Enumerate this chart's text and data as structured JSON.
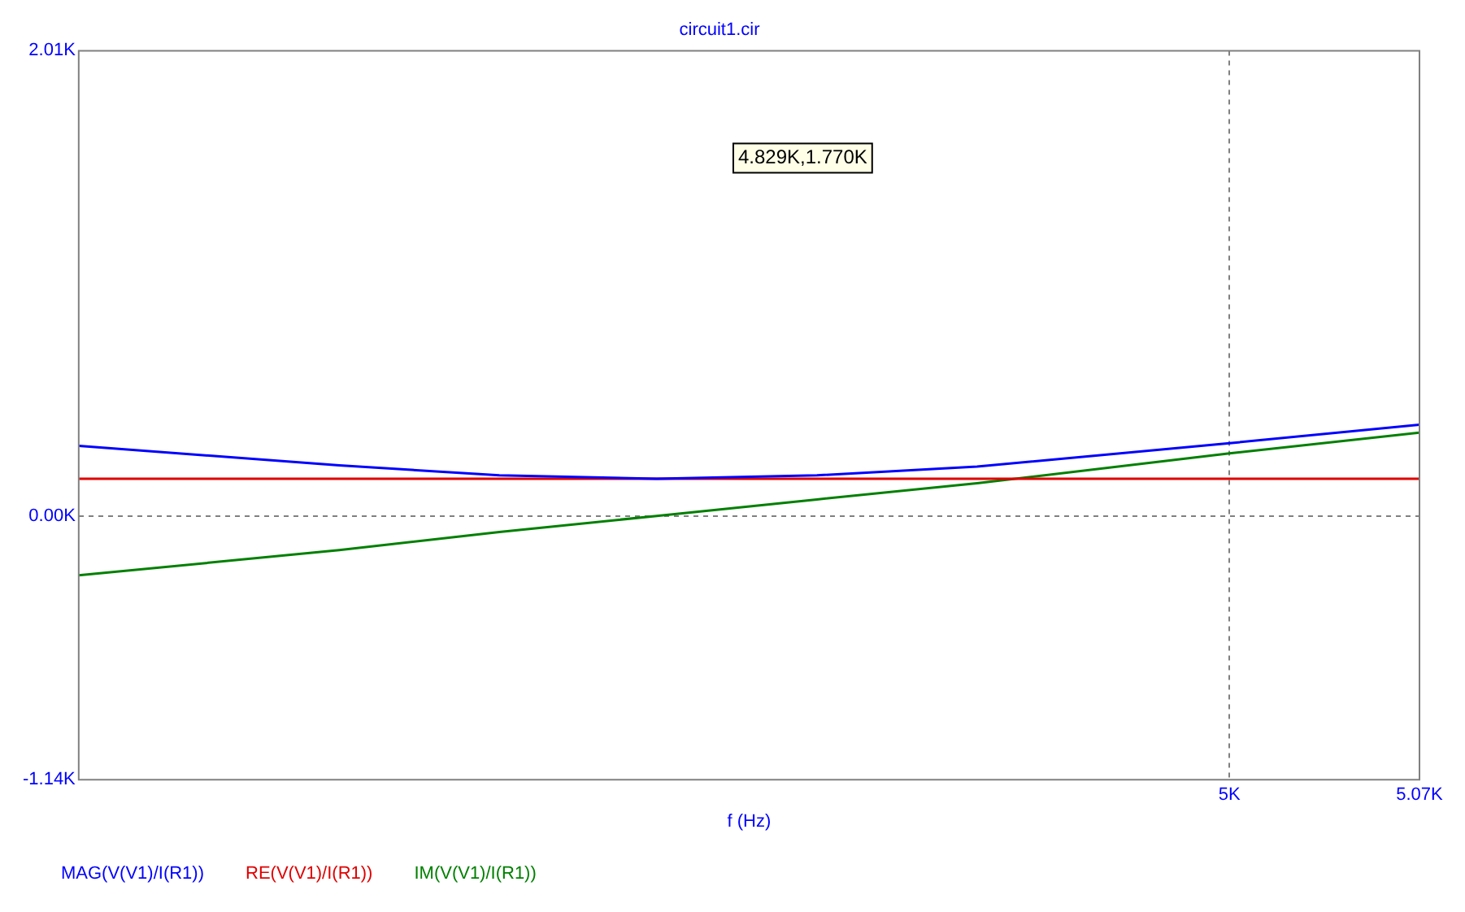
{
  "chart_data": {
    "type": "line",
    "title": "circuit1.cir",
    "x": [
      4576,
      4672,
      4731,
      4789,
      4848,
      4907,
      5000,
      5070
    ],
    "series": [
      {
        "name": "MAG(V(V1)/I(R1))",
        "color": "#0000ff",
        "values": [
          303,
          218,
          175,
          160,
          175,
          213,
          314,
          394
        ]
      },
      {
        "name": "RE(V(V1)/I(R1))",
        "color": "#e00000",
        "values": [
          160,
          160,
          160,
          160,
          160,
          160,
          160,
          160
        ]
      },
      {
        "name": "IM(V(V1)/I(R1))",
        "color": "#008000",
        "values": [
          -257,
          -148,
          -70,
          0,
          71,
          141,
          270,
          360
        ]
      }
    ],
    "xlabel": "f (Hz)",
    "xlim": [
      4576,
      5070
    ],
    "xticks": [
      {
        "value": 5000,
        "label": "5K"
      },
      {
        "value": 5070,
        "label": "5.07K"
      }
    ],
    "ylim": [
      -1140,
      2010
    ],
    "yticks": [
      {
        "value": -1140,
        "label": "-1.14K"
      },
      {
        "value": 0,
        "label": "0.00K"
      },
      {
        "value": 2010,
        "label": "2.01K"
      }
    ],
    "grid": true,
    "legend": "bottom",
    "marker": "none",
    "line_style": "solid",
    "annotations": [
      "4.829K,1.770K"
    ]
  }
}
